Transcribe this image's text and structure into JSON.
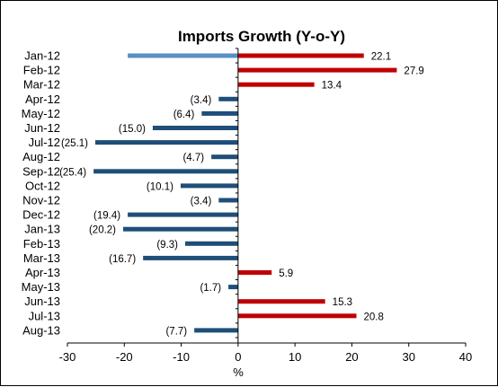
{
  "chart_data": {
    "type": "bar",
    "orientation": "horizontal",
    "title": "Imports Growth (Y-o-Y)",
    "xlabel": "%",
    "ylabel": "",
    "xlim": [
      -30,
      40
    ],
    "xticks": [
      -30,
      -20,
      -10,
      0,
      10,
      20,
      30,
      40
    ],
    "categories": [
      "Jan-12",
      "Feb-12",
      "Mar-12",
      "Apr-12",
      "May-12",
      "Jun-12",
      "Jul-12",
      "Aug-12",
      "Sep-12",
      "Oct-12",
      "Nov-12",
      "Dec-12",
      "Jan-13",
      "Feb-13",
      "Mar-13",
      "Apr-13",
      "May-13",
      "Jun-13",
      "Jul-13",
      "Aug-13"
    ],
    "values": [
      22.1,
      27.9,
      13.4,
      -3.4,
      -6.4,
      -15.0,
      -25.1,
      -4.7,
      -25.4,
      -10.1,
      -3.4,
      -19.4,
      -20.2,
      -9.3,
      -16.7,
      5.9,
      -1.7,
      15.3,
      20.8,
      -7.7
    ],
    "data_labels": [
      "22.1",
      "27.9",
      "13.4",
      "(3.4)",
      "(6.4)",
      "(15.0)",
      "(25.1)",
      "(4.7)",
      "(25.4)",
      "(10.1)",
      "(3.4)",
      "(19.4)",
      "(20.2)",
      "(9.3)",
      "(16.7)",
      "5.9",
      "(1.7)",
      "15.3",
      "20.8",
      "(7.7)"
    ],
    "extra_bar": {
      "category": "Jan-12",
      "value": -19.4,
      "color": "#5b8ec7"
    },
    "colors": {
      "positive": "#c00000",
      "negative": "#1f4e79"
    },
    "grid": false,
    "legend": "none"
  }
}
